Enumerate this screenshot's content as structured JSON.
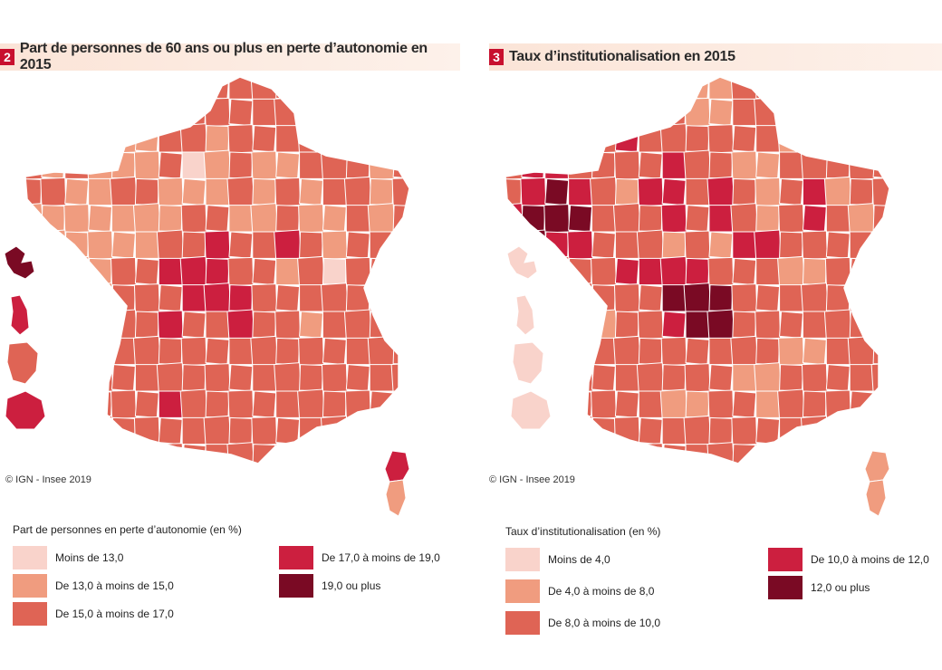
{
  "colors": {
    "c1": "#f9d3cb",
    "c2": "#f09c7f",
    "c3": "#df6455",
    "c4": "#cc1f3f",
    "c5": "#7a0a24",
    "border": "#ffffff"
  },
  "panels": [
    {
      "number": "2",
      "title": "Part de personnes de 60 ans ou plus en perte d’autonomie en 2015",
      "copyright": "© IGN - Insee 2019",
      "legend": {
        "title": "Part de personnes en perte d’autonomie (en %)",
        "classes": [
          {
            "label": "Moins de 13,0",
            "color": "#f9d3cb"
          },
          {
            "label": "De 13,0 à moins de 15,0",
            "color": "#f09c7f"
          },
          {
            "label": "De 15,0 à moins de 17,0",
            "color": "#df6455"
          },
          {
            "label": "De 17,0 à moins de 19,0",
            "color": "#cc1f3f"
          },
          {
            "label": "19,0 ou plus",
            "color": "#7a0a24"
          }
        ]
      }
    },
    {
      "number": "3",
      "title": "Taux d’institutionalisation en 2015",
      "copyright": "© IGN - Insee 2019",
      "legend": {
        "title": "Taux d’institutionalisation (en %)",
        "classes": [
          {
            "label": "Moins de 4,0",
            "color": "#f9d3cb"
          },
          {
            "label": "De 4,0 à moins de 8,0",
            "color": "#f09c7f"
          },
          {
            "label": "De 8,0 à moins de 10,0",
            "color": "#df6455"
          },
          {
            "label": "De 10,0 à moins de 12,0",
            "color": "#cc1f3f"
          },
          {
            "label": "12,0 ou plus",
            "color": "#7a0a24"
          }
        ]
      }
    }
  ],
  "map_cells": {
    "panel_2": [
      "00000033330000000",
      "00000333333000000",
      "00032233233332000",
      "02322201232233320",
      "03223322232323320",
      "22222223322322320",
      "02222233433432000",
      "00223344433231000",
      "00223334443333000",
      "00223343343323000",
      "00023333333333000",
      "00333333333300000",
      "00033340333300000",
      "00000000000000400",
      "00000000000000200"
    ],
    "panel_3": [
      "00000032220000000",
      "00000223223000000",
      "00033433333323000",
      "04433334332233330",
      "04543244343234230",
      "45553334343234320",
      "05443332324433000",
      "00333444433322000",
      "00333335553333000",
      "00332334553333000",
      "00033333333322000",
      "00333333332200000",
      "00033332233200000",
      "00000000000000200",
      "00000000000000200"
    ],
    "overseas_2": [
      "5",
      "4",
      "3",
      "4"
    ],
    "overseas_3": [
      "1",
      "1",
      "1",
      "1"
    ]
  }
}
